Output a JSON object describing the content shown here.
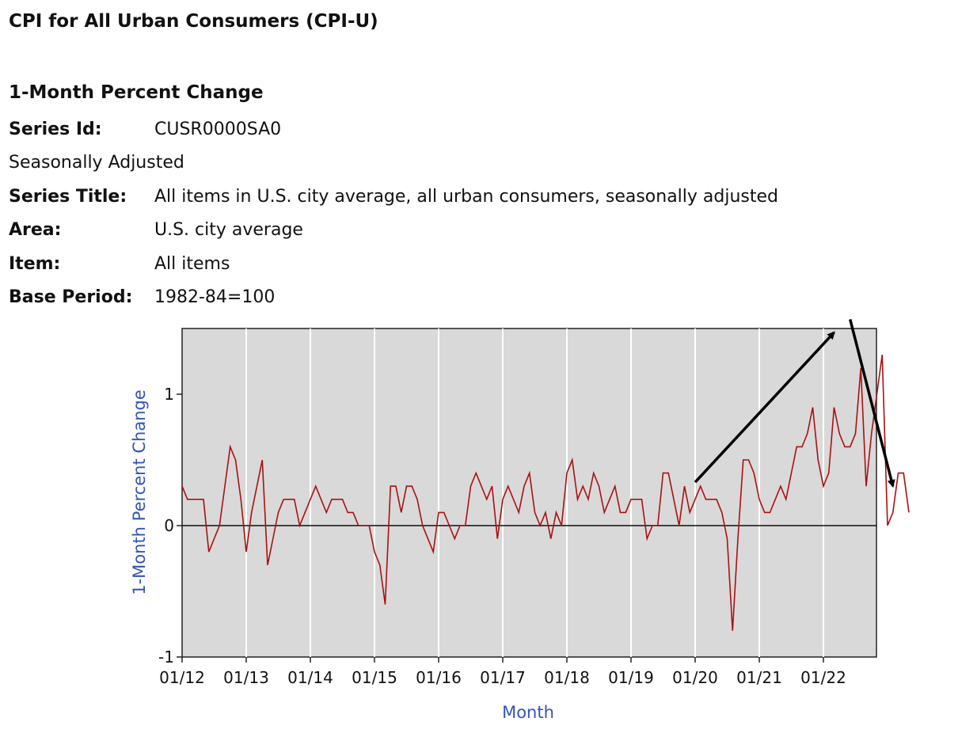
{
  "page": {
    "title": "CPI for All Urban Consumers (CPI-U)",
    "subtitle": "1-Month Percent Change",
    "series_id_label": "Series Id:",
    "series_id": "CUSR0000SA0",
    "adjustment": "Seasonally Adjusted",
    "series_title_label": "Series Title:",
    "series_title": "All items in U.S. city average, all urban consumers, seasonally adjusted",
    "area_label": "Area:",
    "area": "U.S. city average",
    "item_label": "Item:",
    "item": "All items",
    "base_period_label": "Base Period:",
    "base_period": "1982-84=100"
  },
  "colors": {
    "line": "#aa1111",
    "plot_bg": "#d9d9d9",
    "axis_title": "#3355bb",
    "arrows": "#000000"
  },
  "chart_data": {
    "type": "line",
    "title": "",
    "xlabel": "Month",
    "ylabel": "1-Month Percent Change",
    "ylim": [
      -1,
      1.5
    ],
    "yticks": [
      -1,
      0,
      1
    ],
    "ytick_labels": [
      "-1",
      "0",
      "1"
    ],
    "xticks": [
      "01/12",
      "01/13",
      "01/14",
      "01/15",
      "01/16",
      "01/17",
      "01/18",
      "01/19",
      "01/20",
      "01/21",
      "01/22"
    ],
    "start_month": "01/12",
    "grid": true,
    "series": [
      {
        "name": "CUSR0000SA0",
        "values": [
          0.3,
          0.2,
          0.2,
          0.2,
          0.2,
          -0.2,
          -0.1,
          0.0,
          0.3,
          0.6,
          0.5,
          0.2,
          -0.2,
          0.1,
          0.3,
          0.5,
          -0.3,
          -0.1,
          0.1,
          0.2,
          0.2,
          0.2,
          0.0,
          0.1,
          0.2,
          0.3,
          0.2,
          0.1,
          0.2,
          0.2,
          0.2,
          0.1,
          0.1,
          0.0,
          0.0,
          0.0,
          -0.2,
          -0.3,
          -0.6,
          0.3,
          0.3,
          0.1,
          0.3,
          0.3,
          0.2,
          0.0,
          -0.1,
          -0.2,
          0.1,
          0.1,
          0.0,
          -0.1,
          0.0,
          0.0,
          0.3,
          0.4,
          0.3,
          0.2,
          0.3,
          -0.1,
          0.2,
          0.3,
          0.2,
          0.1,
          0.3,
          0.4,
          0.1,
          0.0,
          0.1,
          -0.1,
          0.1,
          0.0,
          0.4,
          0.5,
          0.2,
          0.3,
          0.2,
          0.4,
          0.3,
          0.1,
          0.2,
          0.3,
          0.1,
          0.1,
          0.2,
          0.2,
          0.2,
          -0.1,
          0.0,
          0.0,
          0.4,
          0.4,
          0.2,
          0.0,
          0.3,
          0.1,
          0.2,
          0.3,
          0.2,
          0.2,
          0.2,
          0.1,
          -0.1,
          -0.8,
          -0.1,
          0.5,
          0.5,
          0.4,
          0.2,
          0.1,
          0.1,
          0.2,
          0.3,
          0.2,
          0.4,
          0.6,
          0.6,
          0.7,
          0.9,
          0.5,
          0.3,
          0.4,
          0.9,
          0.7,
          0.6,
          0.6,
          0.7,
          1.2,
          0.3,
          0.7,
          1.0,
          1.3,
          0.0,
          0.1,
          0.4,
          0.4,
          0.1
        ]
      }
    ],
    "annotations": [
      {
        "type": "arrow",
        "from": [
          "01/20",
          0.33
        ],
        "to": [
          "03/22",
          1.47
        ]
      },
      {
        "type": "arrow",
        "from": [
          "06/22",
          1.57
        ],
        "to": [
          "02/23",
          0.3
        ]
      }
    ]
  }
}
